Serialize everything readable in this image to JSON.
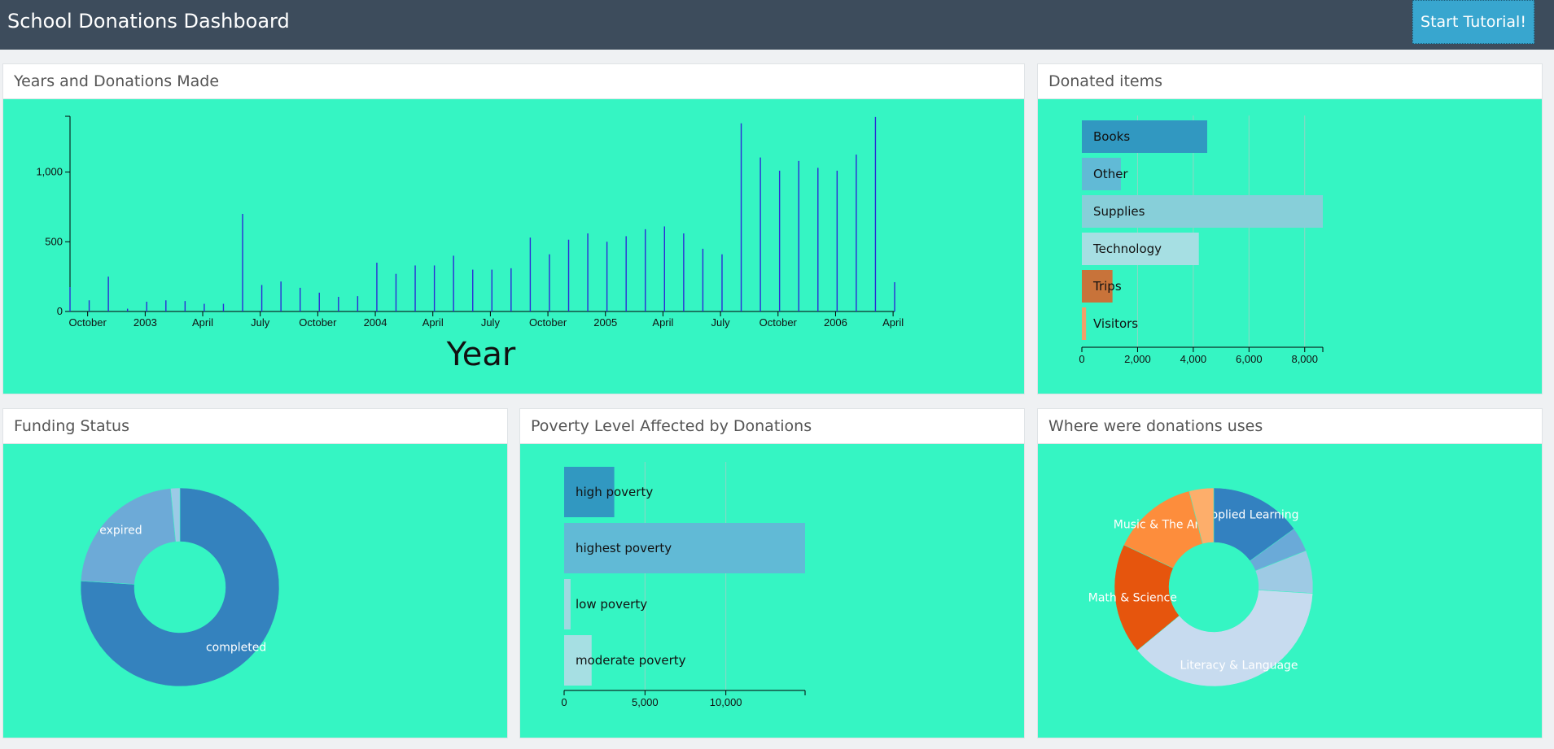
{
  "app": {
    "title": "School Donations Dashboard",
    "tutorial_label": "Start Tutorial!"
  },
  "panels": {
    "timeline": {
      "title": "Years and Donations Made"
    },
    "items": {
      "title": "Donated items"
    },
    "funding": {
      "title": "Funding Status"
    },
    "poverty": {
      "title": "Poverty Level Affected by Donations"
    },
    "areas": {
      "title": "Where were donations uses"
    }
  },
  "colors": {
    "accent": "#38a6cf",
    "navbar": "#3d4c5c",
    "panel_body": "#35f5c3",
    "bar_line": "#2b2bd6"
  },
  "chart_data": [
    {
      "id": "timeline",
      "type": "bar",
      "xlabel": "Year",
      "ylabel": "",
      "ylim": [
        0,
        1400
      ],
      "y_ticks": [
        "0",
        "500",
        "1,000"
      ],
      "x_ticks": [
        "October",
        "2003",
        "April",
        "July",
        "October",
        "2004",
        "April",
        "July",
        "October",
        "2005",
        "April",
        "July",
        "October",
        "2006",
        "April"
      ],
      "x": [
        "2002-09",
        "2002-10",
        "2002-11",
        "2002-12",
        "2003-01",
        "2003-02",
        "2003-03",
        "2003-04",
        "2003-05",
        "2003-06",
        "2003-07",
        "2003-08",
        "2003-09",
        "2003-10",
        "2003-11",
        "2003-12",
        "2004-01",
        "2004-02",
        "2004-03",
        "2004-04",
        "2004-05",
        "2004-06",
        "2004-07",
        "2004-08",
        "2004-09",
        "2004-10",
        "2004-11",
        "2004-12",
        "2005-01",
        "2005-02",
        "2005-03",
        "2005-04",
        "2005-05",
        "2005-06",
        "2005-07",
        "2005-08",
        "2005-09",
        "2005-10",
        "2005-11",
        "2005-12",
        "2006-01",
        "2006-02",
        "2006-03",
        "2006-04"
      ],
      "values": [
        175,
        80,
        250,
        20,
        70,
        80,
        75,
        55,
        55,
        700,
        190,
        215,
        170,
        135,
        105,
        110,
        350,
        270,
        330,
        330,
        400,
        300,
        300,
        310,
        530,
        410,
        515,
        560,
        500,
        540,
        590,
        610,
        560,
        450,
        410,
        1350,
        1105,
        1010,
        1080,
        1030,
        1010,
        1125,
        1395,
        210
      ]
    },
    {
      "id": "items",
      "type": "bar",
      "orientation": "horizontal",
      "categories": [
        "Books",
        "Other",
        "Supplies",
        "Technology",
        "Trips",
        "Visitors"
      ],
      "values": [
        4500,
        1400,
        8650,
        4200,
        1100,
        150
      ],
      "colors": [
        "#3198c1",
        "#61bad6",
        "#87cfd9",
        "#a6dfe3",
        "#c8733a",
        "#f0a069"
      ],
      "xlim": [
        0,
        8650
      ],
      "x_ticks": [
        "0",
        "2,000",
        "4,000",
        "6,000",
        "8,000"
      ]
    },
    {
      "id": "funding",
      "type": "pie",
      "labels": [
        "completed",
        "expired",
        ""
      ],
      "values": [
        76,
        22.5,
        1.5
      ],
      "colors": [
        "#3482be",
        "#6daad7",
        "#9ccae6"
      ],
      "donut": true
    },
    {
      "id": "poverty",
      "type": "bar",
      "orientation": "horizontal",
      "categories": [
        "high poverty",
        "highest poverty",
        "low poverty",
        "moderate poverty"
      ],
      "values": [
        3100,
        14900,
        400,
        1700
      ],
      "colors": [
        "#3198c1",
        "#61bad6",
        "#9fd9e0",
        "#a6dfe3"
      ],
      "xlim": [
        0,
        14900
      ],
      "x_ticks": [
        "0",
        "5,000",
        "10,000"
      ]
    },
    {
      "id": "areas",
      "type": "pie",
      "labels": [
        "Applied Learning",
        "",
        "",
        "Literacy & Language",
        "Math & Science",
        "Music & The Arts",
        ""
      ],
      "values": [
        15,
        4,
        7,
        38,
        18,
        14,
        4
      ],
      "colors": [
        "#3381c0",
        "#6aaad8",
        "#9ecae4",
        "#c7dbef",
        "#e6550d",
        "#fd8d3c",
        "#fdae6b"
      ],
      "donut": true
    }
  ]
}
